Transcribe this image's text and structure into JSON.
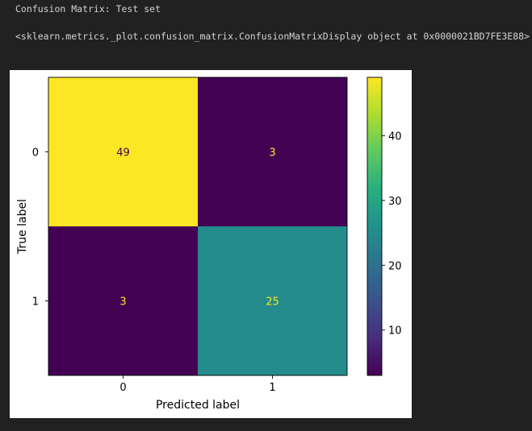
{
  "output": {
    "line1": "Confusion Matrix: Test set",
    "line2": "<sklearn.metrics._plot.confusion_matrix.ConfusionMatrixDisplay object at 0x0000021BD7FE3E88>"
  },
  "chart_data": {
    "type": "heatmap",
    "title": "",
    "xlabel": "Predicted label",
    "ylabel": "True label",
    "x_categories": [
      "0",
      "1"
    ],
    "y_categories": [
      "0",
      "1"
    ],
    "matrix": [
      [
        49,
        3
      ],
      [
        3,
        25
      ]
    ],
    "colormap": "viridis",
    "colorbar": {
      "min": 3,
      "max": 49,
      "ticks": [
        10,
        20,
        30,
        40
      ]
    },
    "grid": false,
    "text_colors": {
      "on_dark": "#fde725",
      "on_light": "#440154"
    }
  },
  "colors": {
    "page_background": "#212121",
    "output_text": "#d4d4d4",
    "figure_background": "#ffffff"
  }
}
